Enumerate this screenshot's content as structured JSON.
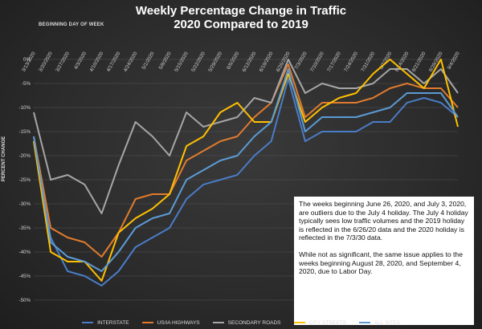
{
  "chart_data": {
    "type": "line",
    "title_line1": "Weekly Percentage Change in Traffic",
    "title_line2": "2020 Compared to 2019",
    "xaxis_caption": "BEGINNING DAY OF WEEK",
    "ylabel": "PERCENT CHANGE",
    "ylim": [
      -50,
      0
    ],
    "yticks": [
      0,
      -5,
      -10,
      -15,
      -20,
      -25,
      -30,
      -35,
      -40,
      -45,
      -50
    ],
    "ytick_labels": [
      "0%",
      "-5%",
      "-10%",
      "-15%",
      "-20%",
      "-25%",
      "-30%",
      "-35%",
      "-40%",
      "-45%",
      "-50%"
    ],
    "grid": true,
    "legend_position": "bottom",
    "categories": [
      "3/13/2020",
      "3/20/2020",
      "3/27/2020",
      "4/3/2020",
      "4/10/2020",
      "4/17/2020",
      "4/24/2020",
      "5/1/2020",
      "5/8/2020",
      "5/15/2020",
      "5/22/2020",
      "5/29/2020",
      "6/5/2020",
      "6/12/2020",
      "6/19/2020",
      "6/26/2020",
      "7/3/2020",
      "7/10/2020",
      "7/17/2020",
      "7/24/2020",
      "7/31/2020",
      "8/7/2020",
      "8/14/2020",
      "8/21/2020",
      "8/28/2020",
      "9/4/2020"
    ],
    "series": [
      {
        "name": "INTERSTATE",
        "color": "#4a7cc7",
        "values": [
          -17,
          -37,
          -44,
          -45,
          -47,
          -44,
          -39,
          -37,
          -35,
          -29,
          -26,
          -25,
          -24,
          -20,
          -17,
          -4,
          -17,
          -15,
          -15,
          -15,
          -13,
          -13,
          -9,
          -8,
          -9,
          -12
        ]
      },
      {
        "name": "US/IA HIGHWAYS",
        "color": "#e07b2e",
        "values": [
          -16,
          -35,
          -37,
          -38,
          -41,
          -36,
          -29,
          -28,
          -28,
          -21,
          -19,
          -17,
          -16,
          -12,
          -9,
          -1,
          -12,
          -9,
          -9,
          -9,
          -8,
          -6,
          -5,
          -6,
          -6,
          -10
        ]
      },
      {
        "name": "SECONDARY ROADS",
        "color": "#a6a6a6",
        "values": [
          -11,
          -25,
          -24,
          -26,
          -32,
          -22,
          -13,
          -16,
          -20,
          -11,
          -14,
          -13,
          -12,
          -8,
          -9,
          0,
          -7,
          -5,
          -6,
          -6,
          -5,
          -2,
          -2,
          -5,
          -2,
          -7
        ]
      },
      {
        "name": "CITY STREETS",
        "color": "#ffc000",
        "values": [
          -17,
          -40,
          -42,
          -42,
          -46,
          -36,
          -33,
          -31,
          -28,
          -18,
          -16,
          -11,
          -9,
          -13,
          -13,
          -3,
          -13,
          -10,
          -8,
          -7,
          -3,
          0,
          -3,
          -6,
          0,
          -14
        ]
      },
      {
        "name": "ALL SITES",
        "color": "#5b9bd5",
        "values": [
          -16,
          -38,
          -41,
          -42,
          -44,
          -40,
          -35,
          -33,
          -32,
          -25,
          -23,
          -21,
          -20,
          -16,
          -13,
          -2,
          -15,
          -12,
          -12,
          -12,
          -11,
          -10,
          -7,
          -7,
          -7,
          -12
        ]
      }
    ]
  },
  "note": {
    "paragraph1": "The weeks beginning June 26, 2020, and July 3, 2020, are outliers due to the July 4 holiday. The July 4 holiday typically sees low traffic volumes and the 2019 holiday is reflected in the 6/26/20 data and the 2020 holiday is reflected in the 7/3/30 data.",
    "paragraph2": "While not as significant, the same issue applies to the weeks beginning August 28, 2020, and September 4, 2020, due to Labor Day."
  }
}
